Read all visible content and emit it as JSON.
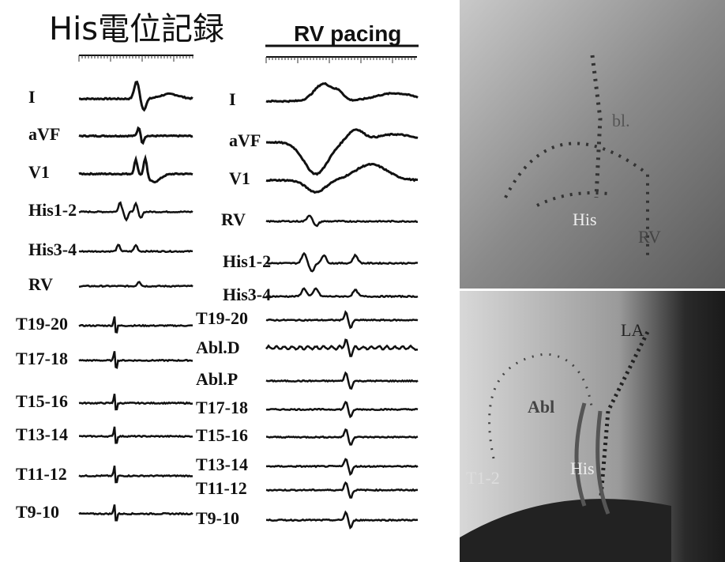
{
  "title": "His電位記録",
  "subtitle": "RV pacing",
  "sinus_leads": [
    "I",
    "aVF",
    "V1",
    "His1-2",
    "His3-4",
    "RV",
    "T19-20",
    "T17-18",
    "T15-16",
    "T13-14",
    "T11-12",
    "T9-10"
  ],
  "pacing_leads": [
    "I",
    "aVF",
    "V1",
    "RV",
    "His1-2",
    "His3-4",
    "T19-20",
    "Abl.D",
    "Abl.P",
    "T17-18",
    "T15-16",
    "T13-14",
    "T11-12",
    "T9-10"
  ],
  "fluoro_top": {
    "labels": [
      "bl.",
      "His",
      "RV"
    ]
  },
  "fluoro_bottom": {
    "labels": [
      "LA",
      "Abl",
      "His",
      "T1-2"
    ]
  }
}
